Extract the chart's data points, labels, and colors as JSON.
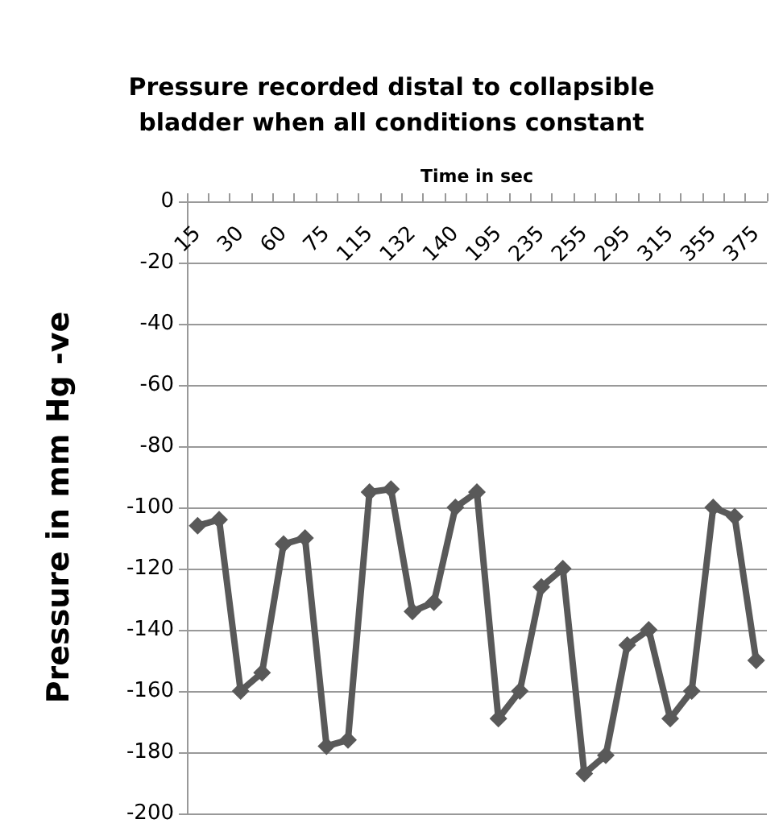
{
  "chart_data": {
    "type": "line",
    "title": "Pressure recorded distal to collapsible\nbladder when all conditions constant",
    "xlabel": "Time in sec",
    "ylabel": "Pressure in mm Hg -ve",
    "categories": [
      "15",
      null,
      "30",
      null,
      "60",
      null,
      "75",
      null,
      "115",
      null,
      "132",
      null,
      "140",
      null,
      "195",
      null,
      "235",
      null,
      "255",
      null,
      "295",
      null,
      "315",
      null,
      "355",
      null,
      "375"
    ],
    "series": [
      {
        "color": "#595959",
        "values": [
          -106,
          -104,
          -160,
          -154,
          -112,
          -110,
          -178,
          -176,
          -95,
          -94,
          -134,
          -131,
          -100,
          -95,
          -169,
          -160,
          -126,
          -120,
          -187,
          -181,
          -145,
          -140,
          -169,
          -160,
          -100,
          -103,
          -150
        ]
      }
    ],
    "ylim": [
      -200,
      0
    ],
    "yticks": [
      -200,
      -180,
      -160,
      -140,
      -120,
      -100,
      -80,
      -60,
      -40,
      -20,
      0
    ],
    "grid": "y",
    "marker": "diamond",
    "line_style": "solid"
  }
}
